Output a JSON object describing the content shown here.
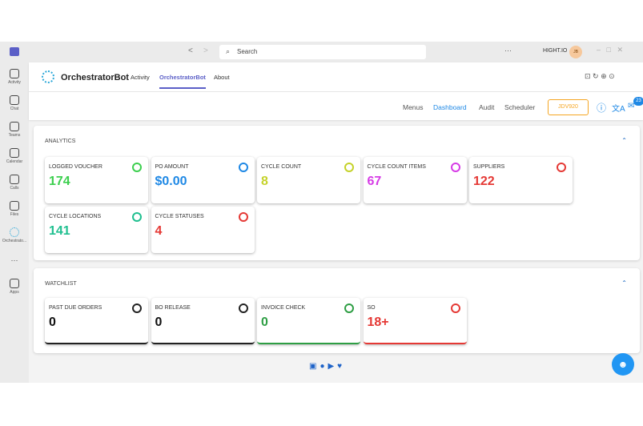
{
  "titlebar": {
    "search": "Search",
    "account": "HIGHT.IO",
    "avatar": "JB"
  },
  "rail": [
    "Activity",
    "Chat",
    "Teams",
    "Calendar",
    "Calls",
    "Files",
    "Orchestrato...",
    "Apps"
  ],
  "app": {
    "name": "OrchestratorBot",
    "tabs": [
      "Activity",
      "OrchestratorBot",
      "About"
    ]
  },
  "nav": {
    "items": [
      "Menus",
      "Dashboard",
      "Audit",
      "Scheduler"
    ],
    "button": "JDV920",
    "badge": "23"
  },
  "analytics": {
    "title": "ANALYTICS",
    "tiles": [
      {
        "label": "LOGGED VOUCHER",
        "value": "174",
        "color": "#3ccf4e"
      },
      {
        "label": "PO AMOUNT",
        "value": "$0.00",
        "color": "#1e88e5"
      },
      {
        "label": "CYCLE COUNT",
        "value": "8",
        "color": "#c5d22a"
      },
      {
        "label": "CYCLE COUNT ITEMS",
        "value": "67",
        "color": "#d63be6"
      },
      {
        "label": "SUPPLIERS",
        "value": "122",
        "color": "#e53935"
      },
      {
        "label": "CYCLE LOCATIONS",
        "value": "141",
        "color": "#1fbf8f"
      },
      {
        "label": "CYCLE STATUSES",
        "value": "4",
        "color": "#e53935"
      }
    ]
  },
  "watchlist": {
    "title": "WATCHLIST",
    "tiles": [
      {
        "label": "PAST DUE ORDERS",
        "value": "0",
        "color": "#222222"
      },
      {
        "label": "BO RELEASE",
        "value": "0",
        "color": "#222222"
      },
      {
        "label": "INVOICE CHECK",
        "value": "0",
        "color": "#2e9e44"
      },
      {
        "label": "SO",
        "value": "18+",
        "color": "#e53935"
      }
    ]
  }
}
